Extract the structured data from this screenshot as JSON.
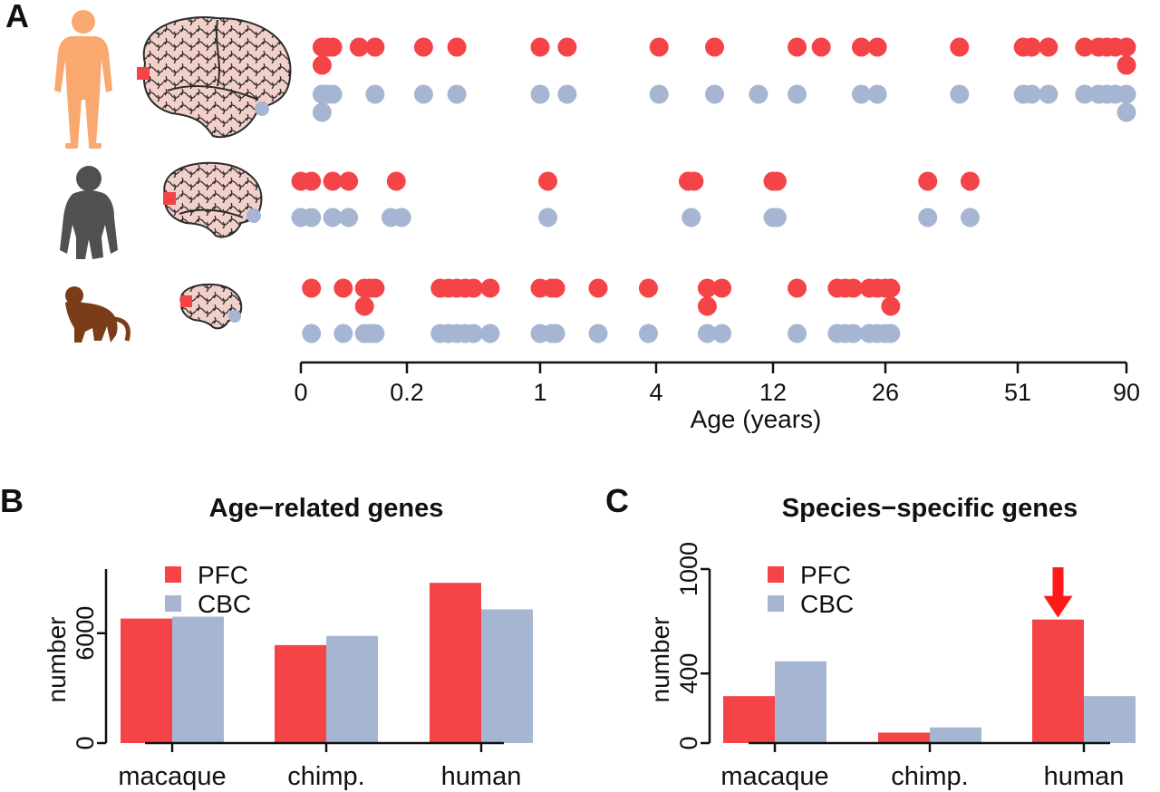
{
  "panel_labels": {
    "a": "A",
    "b": "B",
    "c": "C"
  },
  "colors": {
    "pfc": "#f44448",
    "cbc": "#a6b5d1",
    "arrow": "#ff1a1a",
    "human": "#f9a870",
    "chimp": "#505050",
    "macaque": "#7b3c18",
    "brain_fill": "#f2cfc9",
    "brain_line": "#2b2b2b"
  },
  "icons": {
    "human": "human-silhouette-icon",
    "chimp": "chimpanzee-silhouette-icon",
    "macaque": "macaque-silhouette-icon",
    "brain": "brain-icon",
    "arrow": "down-arrow-icon"
  },
  "chart_data": [
    {
      "id": "A",
      "type": "scatter",
      "xlabel": "Age (years)",
      "x_ticks": [
        "0",
        "0.2",
        "1",
        "4",
        "12",
        "26",
        "51",
        "90"
      ],
      "x_tick_values": [
        0,
        0.2,
        1,
        4,
        12,
        26,
        51,
        90
      ],
      "xlim": [
        0,
        90
      ],
      "legend": null,
      "rows": [
        {
          "species": "human",
          "pfc": [
            0.04,
            0.05,
            0.06,
            0.11,
            0.14,
            0.3,
            0.5,
            1.0,
            1.7,
            4.2,
            8.0,
            15.0,
            18.0,
            23.0,
            25.0,
            40.0,
            53.0,
            56.0,
            62.0,
            75.0,
            80.0,
            83.0,
            86.0,
            90.0
          ],
          "pfc_stacked": [
            0.04,
            90.0
          ],
          "cbc": [
            0.04,
            0.05,
            0.06,
            0.14,
            0.3,
            0.5,
            1.0,
            1.7,
            4.2,
            8.0,
            11.0,
            15.0,
            23.0,
            25.0,
            40.0,
            53.0,
            56.0,
            62.0,
            75.0,
            80.0,
            83.0,
            86.0,
            90.0
          ],
          "cbc_stacked": [
            0.04,
            90.0
          ]
        },
        {
          "species": "chimp",
          "pfc": [
            0.0,
            0.02,
            0.06,
            0.09,
            0.18,
            1.2,
            6.2,
            6.6,
            12.0,
            12.5,
            34.0,
            42.0
          ],
          "cbc": [
            0.0,
            0.02,
            0.06,
            0.09,
            0.17,
            0.19,
            1.2,
            6.4,
            12.0,
            12.5,
            34.0,
            42.0
          ]
        },
        {
          "species": "macaque",
          "pfc": [
            0.02,
            0.08,
            0.12,
            0.13,
            0.14,
            0.4,
            0.45,
            0.5,
            0.55,
            0.6,
            0.7,
            1.0,
            1.3,
            1.4,
            2.5,
            3.8,
            7.5,
            8.5,
            15.0,
            20.0,
            21.0,
            22.0,
            24.0,
            25.0,
            26.0,
            27.0
          ],
          "pfc_stacked": [
            0.12,
            7.5,
            27.0
          ],
          "cbc": [
            0.02,
            0.08,
            0.12,
            0.13,
            0.14,
            0.4,
            0.45,
            0.5,
            0.55,
            0.6,
            0.7,
            1.0,
            1.3,
            1.4,
            2.5,
            3.8,
            7.5,
            8.5,
            15.0,
            20.0,
            21.0,
            22.0,
            24.0,
            25.0,
            26.0,
            27.0
          ]
        }
      ]
    },
    {
      "id": "B",
      "type": "bar",
      "title": "Age−related genes",
      "ylabel": "number",
      "categories": [
        "macaque",
        "chimp.",
        "human"
      ],
      "series": [
        {
          "name": "PFC",
          "values": [
            6800,
            5350,
            8750
          ]
        },
        {
          "name": "CBC",
          "values": [
            6900,
            5850,
            7300
          ]
        }
      ],
      "ylim": [
        0,
        9500
      ],
      "y_ticks": [
        "0",
        "6000"
      ],
      "y_tick_values": [
        0,
        6000
      ],
      "legend_position": "top-left"
    },
    {
      "id": "C",
      "type": "bar",
      "title": "Species−specific genes",
      "ylabel": "number",
      "categories": [
        "macaque",
        "chimp.",
        "human"
      ],
      "series": [
        {
          "name": "PFC",
          "values": [
            270,
            60,
            710
          ]
        },
        {
          "name": "CBC",
          "values": [
            470,
            90,
            270
          ]
        }
      ],
      "ylim": [
        0,
        1000
      ],
      "y_ticks": [
        "0",
        "400",
        "1000"
      ],
      "y_tick_values": [
        0,
        400,
        1000
      ],
      "legend_position": "top-left",
      "annotation": {
        "type": "arrow",
        "category": "human",
        "series": "PFC"
      }
    }
  ]
}
